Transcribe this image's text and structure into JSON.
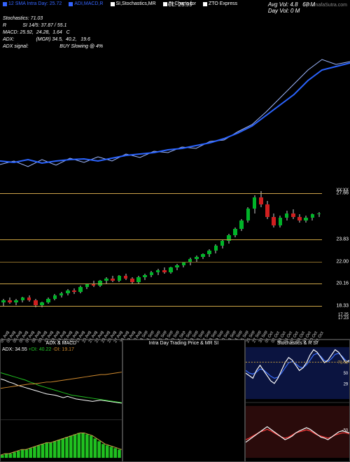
{
  "header": {
    "markers": [
      {
        "color": "#3565ff",
        "label": "12 SMA Intra Day: 25.72"
      },
      {
        "color": "#3565ff",
        "label": "ADI,MACD,R"
      },
      {
        "color": "#ffffff",
        "label": "SI,Stochastics,MR"
      },
      {
        "color": "#ffffff",
        "label": "SI Charts for"
      },
      {
        "color": "#ffffff",
        "label": "ZTO Express"
      }
    ],
    "overlay12day": "12 Day = 25.72",
    "cl_line": "CL: 25.99",
    "avg_vol": "Avg Vol: 4.8",
    "avg_num": "68   M",
    "day_vol": "Day Vol: 0   M",
    "watermark": "| MunafaSutra.com"
  },
  "indicators": {
    "lines": [
      "Stochastics: 71.03",
      "R            SI 14/5: 37.87 / 55.1",
      "MACD: 25.92,  24.28,  1.64   C",
      "ADX:                (MGR) 34.5,  40.2,   19.6",
      "ADX signal:                       BUY Slowing @ 4%"
    ]
  },
  "main_chart": {
    "bg": "#000000",
    "line1_color": "#2b64ff",
    "line2_color": "#9fb8ff",
    "line1": [
      [
        0,
        160
      ],
      [
        20,
        162
      ],
      [
        40,
        158
      ],
      [
        60,
        163
      ],
      [
        80,
        160
      ],
      [
        100,
        158
      ],
      [
        120,
        157
      ],
      [
        140,
        160
      ],
      [
        160,
        156
      ],
      [
        180,
        152
      ],
      [
        200,
        150
      ],
      [
        220,
        148
      ],
      [
        240,
        144
      ],
      [
        260,
        142
      ],
      [
        280,
        138
      ],
      [
        300,
        134
      ],
      [
        320,
        128
      ],
      [
        340,
        120
      ],
      [
        360,
        110
      ],
      [
        380,
        95
      ],
      [
        400,
        80
      ],
      [
        420,
        65
      ],
      [
        440,
        45
      ],
      [
        460,
        30
      ],
      [
        480,
        25
      ],
      [
        500,
        20
      ]
    ],
    "line2": [
      [
        0,
        165
      ],
      [
        20,
        160
      ],
      [
        40,
        168
      ],
      [
        60,
        158
      ],
      [
        80,
        166
      ],
      [
        100,
        156
      ],
      [
        120,
        162
      ],
      [
        140,
        154
      ],
      [
        160,
        160
      ],
      [
        180,
        150
      ],
      [
        200,
        155
      ],
      [
        220,
        146
      ],
      [
        240,
        148
      ],
      [
        260,
        140
      ],
      [
        280,
        142
      ],
      [
        300,
        132
      ],
      [
        320,
        130
      ],
      [
        340,
        118
      ],
      [
        360,
        108
      ],
      [
        380,
        90
      ],
      [
        400,
        70
      ],
      [
        420,
        50
      ],
      [
        440,
        30
      ],
      [
        460,
        15
      ],
      [
        480,
        22
      ],
      [
        500,
        18
      ]
    ]
  },
  "candle_panel": {
    "price_min": 17.0,
    "price_max": 28.0,
    "h_lines": [
      {
        "v": 27.66,
        "c": "#cca24a"
      },
      {
        "v": 23.83,
        "c": "#c7a040"
      },
      {
        "v": 22.0,
        "c": "#8a6b2a"
      },
      {
        "v": 20.16,
        "c": "#caa447"
      },
      {
        "v": 18.33,
        "c": "#caa447"
      }
    ],
    "extra_labels": [
      {
        "v": 27.9,
        "t": "XX:XX"
      },
      {
        "v": 17.6,
        "t": "17.25"
      },
      {
        "v": 17.3,
        "t": "17.23"
      }
    ],
    "x_labels": [
      "01 Aug",
      "02 Aug",
      "05 Aug",
      "06 Aug",
      "07 Aug",
      "08 Aug",
      "09 Aug",
      "12 Aug",
      "13 Aug",
      "14 Aug",
      "15 Aug",
      "16 Aug",
      "19 Aug",
      "20 Aug",
      "21 Aug",
      "22 Aug",
      "23 Aug",
      "26 Aug",
      "27 Aug",
      "28 Aug",
      "29 Aug",
      "30 Aug",
      "03 Sep",
      "04 Sep",
      "05 Sep",
      "06 Sep",
      "09 Sep",
      "10 Sep",
      "11 Sep",
      "12 Sep",
      "13 Sep",
      "16 Sep",
      "17 Sep",
      "18 Sep",
      "19 Sep",
      "20 Sep",
      "23 Sep",
      "24 Sep",
      "25 Sep",
      "26 Sep",
      "27 Sep",
      "30 Sep",
      "01 Oct",
      "02 Oct",
      "03 Oct",
      "04 Oct",
      "07 Oct",
      "08 Oct",
      "09 Oct",
      "10 Oct",
      "11 Oct"
    ],
    "candles": [
      {
        "o": 18.6,
        "h": 18.9,
        "l": 18.3,
        "c": 18.8,
        "up": true
      },
      {
        "o": 18.8,
        "h": 19.0,
        "l": 18.5,
        "c": 18.6,
        "up": false
      },
      {
        "o": 18.6,
        "h": 18.9,
        "l": 18.4,
        "c": 18.8,
        "up": true
      },
      {
        "o": 18.8,
        "h": 19.1,
        "l": 18.6,
        "c": 19.0,
        "up": true
      },
      {
        "o": 19.0,
        "h": 19.2,
        "l": 18.7,
        "c": 18.8,
        "up": false
      },
      {
        "o": 18.8,
        "h": 18.9,
        "l": 18.2,
        "c": 18.4,
        "up": false
      },
      {
        "o": 18.4,
        "h": 18.7,
        "l": 18.2,
        "c": 18.6,
        "up": true
      },
      {
        "o": 18.6,
        "h": 19.0,
        "l": 18.5,
        "c": 18.9,
        "up": true
      },
      {
        "o": 18.9,
        "h": 19.3,
        "l": 18.8,
        "c": 19.2,
        "up": true
      },
      {
        "o": 19.2,
        "h": 19.5,
        "l": 19.0,
        "c": 19.4,
        "up": true
      },
      {
        "o": 19.4,
        "h": 19.7,
        "l": 19.2,
        "c": 19.6,
        "up": true
      },
      {
        "o": 19.6,
        "h": 19.8,
        "l": 19.3,
        "c": 19.5,
        "up": false
      },
      {
        "o": 19.5,
        "h": 20.0,
        "l": 19.4,
        "c": 19.9,
        "up": true
      },
      {
        "o": 19.9,
        "h": 20.2,
        "l": 19.7,
        "c": 20.1,
        "up": true
      },
      {
        "o": 20.1,
        "h": 20.4,
        "l": 19.9,
        "c": 20.0,
        "up": false
      },
      {
        "o": 20.0,
        "h": 20.5,
        "l": 19.9,
        "c": 20.4,
        "up": true
      },
      {
        "o": 20.4,
        "h": 20.7,
        "l": 20.2,
        "c": 20.6,
        "up": true
      },
      {
        "o": 20.6,
        "h": 20.8,
        "l": 20.3,
        "c": 20.4,
        "up": false
      },
      {
        "o": 20.4,
        "h": 20.9,
        "l": 20.3,
        "c": 20.8,
        "up": true
      },
      {
        "o": 20.8,
        "h": 21.0,
        "l": 20.5,
        "c": 20.6,
        "up": false
      },
      {
        "o": 20.6,
        "h": 20.7,
        "l": 20.2,
        "c": 20.3,
        "up": false
      },
      {
        "o": 20.3,
        "h": 20.8,
        "l": 20.2,
        "c": 20.7,
        "up": true
      },
      {
        "o": 20.7,
        "h": 21.0,
        "l": 20.5,
        "c": 20.9,
        "up": true
      },
      {
        "o": 20.9,
        "h": 21.2,
        "l": 20.7,
        "c": 21.1,
        "up": true
      },
      {
        "o": 21.1,
        "h": 21.4,
        "l": 20.9,
        "c": 21.3,
        "up": true
      },
      {
        "o": 21.3,
        "h": 21.5,
        "l": 21.0,
        "c": 21.1,
        "up": false
      },
      {
        "o": 21.1,
        "h": 21.6,
        "l": 21.0,
        "c": 21.5,
        "up": true
      },
      {
        "o": 21.5,
        "h": 21.8,
        "l": 21.3,
        "c": 21.7,
        "up": true
      },
      {
        "o": 21.7,
        "h": 22.0,
        "l": 21.5,
        "c": 21.9,
        "up": true
      },
      {
        "o": 21.9,
        "h": 22.3,
        "l": 21.7,
        "c": 22.2,
        "up": true
      },
      {
        "o": 22.2,
        "h": 22.5,
        "l": 22.0,
        "c": 22.4,
        "up": true
      },
      {
        "o": 22.4,
        "h": 22.7,
        "l": 22.2,
        "c": 22.6,
        "up": true
      },
      {
        "o": 22.6,
        "h": 23.0,
        "l": 22.4,
        "c": 22.9,
        "up": true
      },
      {
        "o": 22.9,
        "h": 23.4,
        "l": 22.7,
        "c": 23.3,
        "up": true
      },
      {
        "o": 23.3,
        "h": 23.8,
        "l": 23.1,
        "c": 23.7,
        "up": true
      },
      {
        "o": 23.7,
        "h": 24.3,
        "l": 23.5,
        "c": 24.2,
        "up": true
      },
      {
        "o": 24.2,
        "h": 24.8,
        "l": 24.0,
        "c": 24.7,
        "up": true
      },
      {
        "o": 24.7,
        "h": 25.5,
        "l": 24.5,
        "c": 25.4,
        "up": true
      },
      {
        "o": 25.4,
        "h": 26.5,
        "l": 25.2,
        "c": 26.4,
        "up": true
      },
      {
        "o": 26.4,
        "h": 27.5,
        "l": 26.0,
        "c": 27.3,
        "up": true
      },
      {
        "o": 27.3,
        "h": 27.8,
        "l": 26.5,
        "c": 26.7,
        "up": false
      },
      {
        "o": 26.7,
        "h": 27.0,
        "l": 25.5,
        "c": 25.7,
        "up": false
      },
      {
        "o": 25.7,
        "h": 26.0,
        "l": 24.8,
        "c": 25.0,
        "up": false
      },
      {
        "o": 25.0,
        "h": 25.8,
        "l": 24.8,
        "c": 25.6,
        "up": true
      },
      {
        "o": 25.6,
        "h": 26.2,
        "l": 25.4,
        "c": 26.0,
        "up": true
      },
      {
        "o": 26.0,
        "h": 26.3,
        "l": 25.5,
        "c": 25.7,
        "up": false
      },
      {
        "o": 25.7,
        "h": 25.9,
        "l": 25.2,
        "c": 25.4,
        "up": false
      },
      {
        "o": 25.4,
        "h": 25.8,
        "l": 25.2,
        "c": 25.6,
        "up": true
      },
      {
        "o": 25.6,
        "h": 26.0,
        "l": 25.4,
        "c": 25.9,
        "up": true
      },
      {
        "o": 25.9,
        "h": 26.1,
        "l": 25.7,
        "c": 26.0,
        "up": true
      }
    ],
    "up_color": "#00b428",
    "down_color": "#d01f1f",
    "wick_color": "#cccccc"
  },
  "bottom_panels": {
    "adx": {
      "title": "ADX  & MACD",
      "subtitle_parts": [
        {
          "t": "ADX: 34.55 ",
          "c": "#ffffff"
        },
        {
          "t": "+DI: 40.22 ",
          "c": "#22c928"
        },
        {
          "t": "-DI: 19.17",
          "c": "#d08a2e"
        }
      ],
      "bg": "#000000",
      "series": {
        "white": [
          60,
          58,
          55,
          53,
          50,
          48,
          46,
          44,
          42,
          40,
          38,
          36,
          35,
          34,
          32,
          30,
          32,
          30,
          28,
          27,
          26,
          25,
          24,
          25,
          26,
          25,
          24,
          23,
          22,
          21
        ],
        "green": [
          70,
          68,
          66,
          64,
          62,
          60,
          58,
          55,
          53,
          50,
          48,
          46,
          44,
          42,
          40,
          38,
          36,
          34,
          33,
          32,
          31,
          30,
          29,
          28,
          27,
          26,
          25,
          24,
          23,
          22
        ],
        "orange": [
          45,
          46,
          47,
          48,
          49,
          50,
          51,
          52,
          52,
          53,
          54,
          55,
          55,
          56,
          57,
          58,
          59,
          60,
          61,
          62,
          63,
          64,
          65,
          66,
          67,
          67,
          68,
          69,
          70,
          71
        ]
      },
      "macd_bars": [
        2,
        3,
        3,
        4,
        5,
        6,
        6,
        7,
        8,
        9,
        10,
        11,
        11,
        12,
        13,
        14,
        15,
        16,
        17,
        18,
        18,
        17,
        16,
        14,
        12,
        10,
        9,
        8,
        7,
        6
      ],
      "macd_bar_color": "#20c020",
      "macd_line_color": "#caa447"
    },
    "intra": {
      "title": "Intra  Day Trading Price  & MR      SI"
    },
    "stoch": {
      "title": "Stochastics & R      SI",
      "upper": {
        "bg": "#0b1440",
        "line_white": [
          50,
          45,
          40,
          55,
          65,
          55,
          45,
          35,
          30,
          40,
          55,
          70,
          80,
          75,
          65,
          55,
          60,
          70,
          85,
          95,
          90,
          80,
          70,
          75,
          85,
          95,
          90,
          80,
          70,
          75
        ],
        "line_blue": [
          55,
          50,
          48,
          52,
          58,
          56,
          50,
          44,
          40,
          42,
          50,
          60,
          70,
          72,
          68,
          62,
          60,
          66,
          75,
          85,
          88,
          82,
          74,
          72,
          78,
          86,
          88,
          82,
          74,
          72
        ],
        "ref": 71.03,
        "ref_color": "#c7a040",
        "y_labels": [
          {
            "v": 50,
            "t": "50"
          },
          {
            "v": 29,
            "t": "29"
          }
        ]
      },
      "lower": {
        "bg": "#2a0b0b",
        "line_white": [
          30,
          35,
          40,
          45,
          50,
          55,
          60,
          55,
          50,
          45,
          40,
          35,
          38,
          42,
          48,
          52,
          55,
          58,
          55,
          50,
          45,
          40,
          38,
          35,
          40,
          45,
          50,
          52,
          50,
          48
        ],
        "line_red": [
          35,
          38,
          42,
          46,
          50,
          52,
          55,
          52,
          48,
          44,
          40,
          38,
          40,
          44,
          48,
          50,
          52,
          54,
          52,
          48,
          44,
          42,
          40,
          38,
          40,
          44,
          46,
          48,
          48,
          46
        ],
        "y_label": {
          "v": -50,
          "t": "-50"
        }
      }
    }
  }
}
